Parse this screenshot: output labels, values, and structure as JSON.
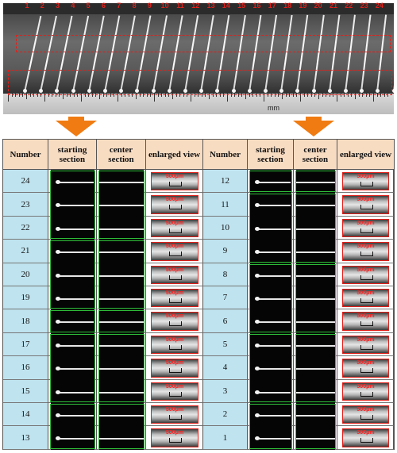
{
  "photo": {
    "wire_numbers": [
      "1",
      "2",
      "3",
      "4",
      "5",
      "6",
      "7",
      "8",
      "9",
      "10",
      "11",
      "12",
      "13",
      "14",
      "15",
      "16",
      "17",
      "18",
      "19",
      "20",
      "21",
      "22",
      "23",
      "24"
    ],
    "ruler_unit": "mm",
    "colors": {
      "label": "#e0201a",
      "arrow": "#f07b12"
    }
  },
  "table": {
    "headers": {
      "number": "Number",
      "starting": "starting section",
      "center": "center section",
      "enlarged": "enlarged view"
    },
    "left_rows": [
      "24",
      "23",
      "22",
      "21",
      "20",
      "19",
      "18",
      "17",
      "16",
      "15",
      "14",
      "13"
    ],
    "right_rows": [
      "12",
      "11",
      "10",
      "9",
      "8",
      "7",
      "6",
      "5",
      "4",
      "3",
      "2",
      "1"
    ],
    "scale_label": "500μm",
    "colors": {
      "header_bg": "#f8dcc2",
      "number_bg": "#bfe3ef",
      "group_border": "#2fbf3a",
      "enlarged_border": "#e0201a"
    }
  }
}
